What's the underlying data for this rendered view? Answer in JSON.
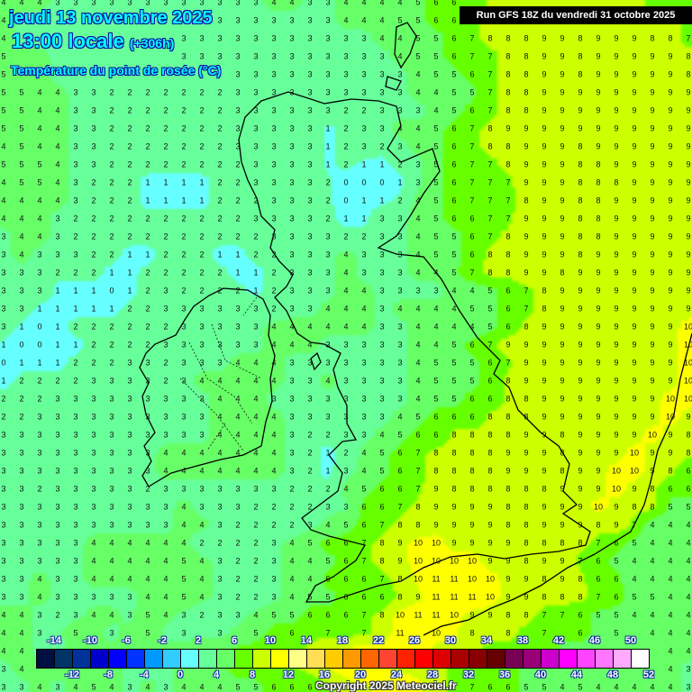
{
  "header": {
    "date": "jeudi 13 novembre 2025",
    "time": "13:00 locale",
    "lead": "(+306h)",
    "variable": "Température du point de rosée (°C)",
    "run": "Run GFS 18Z du vendredi 31 octobre 2025"
  },
  "copyright": "Copyright 2025 Meteociel.fr",
  "legend": {
    "top_labels": [
      "-14",
      "-10",
      "-6",
      "-2",
      "2",
      "6",
      "10",
      "14",
      "18",
      "22",
      "26",
      "30",
      "34",
      "38",
      "42",
      "46",
      "50"
    ],
    "bottom_labels": [
      "-12",
      "-8",
      "-4",
      "0",
      "4",
      "8",
      "12",
      "16",
      "20",
      "24",
      "28",
      "32",
      "36",
      "40",
      "44",
      "48",
      "52"
    ],
    "min": -16,
    "step": 2,
    "colors": [
      "#001040",
      "#003366",
      "#003399",
      "#0000cc",
      "#0000ff",
      "#0033ff",
      "#0099ff",
      "#33ccff",
      "#66ffff",
      "#66ff99",
      "#66ff66",
      "#66ff00",
      "#ccff00",
      "#ffff00",
      "#ffff88",
      "#ffdd55",
      "#ffcc00",
      "#ff9900",
      "#ff6600",
      "#ff4433",
      "#ff2200",
      "#ff0000",
      "#dd0000",
      "#aa0000",
      "#880000",
      "#660000",
      "#770055",
      "#990077",
      "#cc00cc",
      "#ff00ff",
      "#ff44ff",
      "#ff77ff",
      "#ffaaff",
      "#ffffff"
    ]
  },
  "grid_rows": [
    "4 4 4 3 3 3 3 3 3 3 3 3 3 3 3 4 4 3 3 4 4 4 4 5 6 6 6 8 8 8 8 8 8 8 8 8 7 7 7",
    "4 3 3 3 3 3 3 3 3 3 3 3 3 3 3 3 3 3 3 4 4 4 5 5 6 6 7 8 8 8 8 8 8 8 8 8 8 8 7",
    "4 3 3 3 3 3 3 3 3 3 3 3 3 3 3 3 3 3 3 3 3 4 4 5 5 6 7 8 8 8 9 9 8 9 9 9 8 8 7",
    "5 4 4 3 3 3 3 3 2 2 3 3 3 3 3 3 3 3 3 3 3 3 4 5 5 6 7 7 8 8 9 9 8 9 9 9 9 9 8",
    "5 4 4 3 3 2 2 2 2 2 2 3 3 3 3 3 3 3 3 3 3 3 3 4 5 5 6 7 8 8 9 9 8 9 9 9 9 9 8",
    "5 5 4 4 3 3 2 2 2 2 2 2 2 3 3 3 3 3 3 3 3 3 3 4 4 5 5 7 8 8 9 9 9 9 9 9 9 9 9",
    "5 5 4 4 3 3 2 2 2 2 2 2 2 3 3 3 3 3 3 2 2 3 3 3 4 5 6 7 8 8 9 9 9 9 9 9 9 9 9",
    "5 5 4 4 3 3 2 2 2 2 2 2 2 3 3 3 3 3 1 2 3 3 4 4 5 6 7 8 9 9 9 9 9 9 9 9 9 9 9",
    "4 5 4 4 3 3 2 2 2 2 2 2 2 3 3 3 3 3 1 2 3 2 3 4 5 6 7 8 8 9 9 9 8 9 9 9 9 9 9",
    "5 5 5 4 3 3 2 2 2 2 2 2 2 2 3 3 3 3 1 2 1 1 2 3 5 6 7 7 8 9 9 9 8 8 9 9 9 9 9",
    "4 5 5 4 3 2 2 2 1 1 1 1 2 2 3 3 3 3 2 0 0 0 1 3 5 6 7 7 7 9 9 9 8 8 8 9 9 9 9",
    "4 4 4 4 3 2 2 2 1 1 1 1 2 2 2 3 3 3 2 0 1 1 2 4 5 6 7 7 7 8 9 9 8 8 9 9 9 9 9",
    "4 4 4 3 2 2 2 2 2 2 2 2 2 2 3 3 3 3 2 1 1 3 3 4 5 6 6 7 7 9 9 9 8 8 9 9 9 9 9",
    "3 4 4 3 2 2 2 2 2 2 2 2 2 2 2 3 3 3 3 2 2 3 3 4 5 5 6 7 8 9 9 9 8 8 9 9 9 9 9",
    "3 4 3 3 3 2 2 1 1 2 2 2 1 1 2 2 3 3 3 4 3 3 3 4 5 5 6 8 8 9 9 9 8 9 9 9 9 9 9",
    "3 3 3 2 2 2 1 1 2 2 2 2 2 1 1 2 3 3 3 4 3 3 3 4 4 5 7 8 8 9 9 8 9 9 9 9 9 9 9",
    "3 3 3 1 1 1 0 1 2 3 2 2 2 2 1 2 3 3 3 4 4 3 3 3 3 4 4 5 6 7 8 9 9 9 9 9 9 9 9",
    "3 3 1 1 1 1 1 2 2 3 3 3 3 3 3 2 3 3 4 4 4 3 4 4 4 4 5 5 6 7 8 9 9 9 9 9 9 9 9",
    "3 1 0 1 2 2 2 2 2 2 3 3 3 3 3 4 4 4 4 4 4 3 3 4 4 4 4 5 6 8 9 9 9 9 9 9 9 9 10",
    "1 0 0 1 1 2 2 2 2 3 3 3 3 3 3 4 4 4 3 3 3 3 3 4 4 5 6 7 9 9 9 9 9 9 9 9 9 9 10",
    "0 1 1 1 2 2 2 3 3 2 3 3 3 4 4 4 3 3 3 3 3 3 3 4 5 5 5 6 7 9 9 9 9 9 9 9 9 9 10",
    "1 2 2 2 2 3 3 3 3 2 3 4 4 4 4 4 3 3 4 3 3 3 3 4 5 5 5 6 8 9 9 9 9 9 9 9 9 9 10",
    "2 2 2 3 3 3 3 3 3 3 3 3 4 4 4 3 3 3 3 3 3 3 3 4 5 5 6 6 8 8 9 9 9 9 9 9 9 10 10",
    "2 2 3 3 3 3 3 3 3 3 3 3 4 4 4 4 3 3 3 3 3 3 4 5 6 6 6 8 8 8 9 9 9 9 9 9 9 10 9",
    "3 3 3 3 3 3 3 3 3 3 3 3 4 4 4 4 3 2 2 3 3 4 5 6 6 8 8 8 8 9 9 8 9 9 9 9 10 9 8",
    "3 3 3 3 3 3 3 3 3 4 4 4 4 4 4 4 3 2 1 2 4 5 6 7 8 8 8 8 9 9 9 8 9 9 9 10 9 9 8",
    "3 3 3 3 3 3 3 3 3 4 4 4 4 4 4 4 3 2 1 3 4 5 6 7 8 8 8 8 9 9 9 8 9 9 10 10 9 8 6",
    "3 3 2 3 3 3 3 3 2 3 3 3 3 3 3 3 2 2 2 4 5 6 6 7 9 8 8 8 8 8 8 9 9 9 10 9 8 6 6",
    "3 3 3 3 3 3 3 3 3 3 4 3 3 3 2 2 2 2 3 3 6 6 7 8 9 9 9 9 8 8 9 9 9 10 9 8 8 5 5",
    "3 3 3 3 3 3 3 3 3 3 4 4 3 2 2 2 2 3 4 5 6 7 8 8 9 9 9 9 8 8 9 9 9 8 9 7 4 4 4",
    "3 3 3 3 3 4 4 4 4 4 4 2 2 2 2 3 4 5 6 6 7 8 9 10 10 9 9 9 9 8 8 8 8 7 6 5 4 4 4",
    "3 3 3 3 3 4 4 4 4 4 5 4 3 2 2 3 4 4 5 6 7 8 9 10 10 10 10 9 9 8 9 9 7 6 5 4 4 4 4",
    "3 3 4 3 3 4 4 4 4 4 5 4 3 2 2 3 4 4 6 6 6 7 8 10 11 11 10 10 9 9 8 9 8 6 6 4 4 4 4",
    "3 3 4 3 3 3 3 3 4 4 5 4 3 2 2 3 4 5 5 6 6 6 8 9 11 11 11 10 9 9 8 8 8 7 6 5 5 4 4",
    "4 4 3 2 3 4 4 3 5 4 3 2 3 3 4 5 5 6 6 6 7 8 10 11 11 10 9 9 8 8 7 7 6 5 5 4 4 4 4",
    "4 4 3 3 5 4 3 4 5 3 3 3 3 4 5 6 6 7 7 7 7 8 11 11 10 10 8 8 8 7 7 6 6 5 5 4 4 4 4",
    "4 4 3 3 4 4 4 4 4 4 4 5 5 6 6 7 7 8 9 10 11 11 10 10 9 9 8 7 7 6 6 5 5 5 4 4 4 4 4",
    "3 4 4 4 4 4 4 3 3 3 4 4 5 6 6 7 7 8 9 11 11 10 9 9 8 7 7 6 6 5 5 5 4 4 4 4 4 4 3",
    "3 3 4 3 4 5 4 3 4 3 4 4 4 5 5 6 6 6 7 8 9 10 11 10 8 7 7 6 6 5 5 4 5 4 4 4 4 4 3"
  ]
}
